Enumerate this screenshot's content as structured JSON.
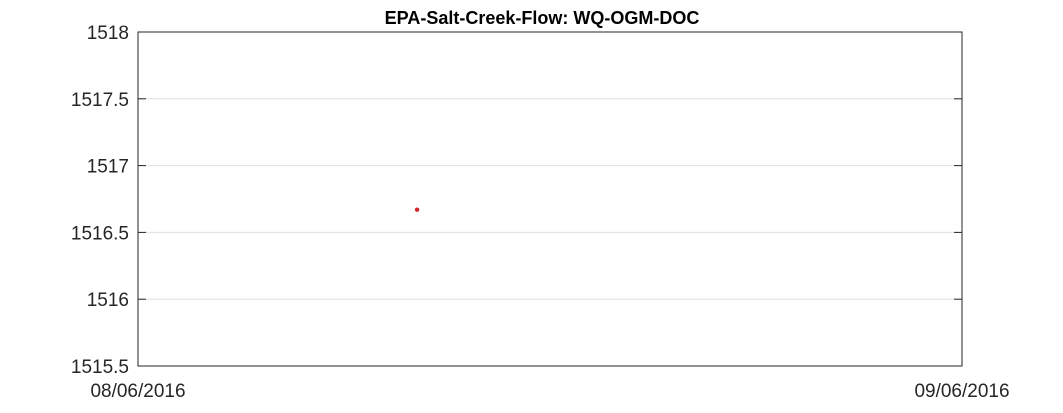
{
  "chart_data": {
    "type": "scatter",
    "title": "EPA-Salt-Creek-Flow: WQ-OGM-DOC",
    "xlabel": "",
    "ylabel": "",
    "xlim": [
      "08/06/2016",
      "09/06/2016"
    ],
    "ylim": [
      1515.5,
      1518
    ],
    "x_ticks": [
      "08/06/2016",
      "09/06/2016"
    ],
    "y_ticks": [
      1515.5,
      1516,
      1516.5,
      1517,
      1517.5,
      1518
    ],
    "y_tick_labels": [
      "1515.5",
      "1516",
      "1516.5",
      "1517",
      "1517.5",
      "1518"
    ],
    "grid": "horizontal",
    "series": [
      {
        "color": "#d62728",
        "points": [
          {
            "x": "08/16/2016 12:00",
            "y": 1516.67
          }
        ]
      }
    ]
  }
}
